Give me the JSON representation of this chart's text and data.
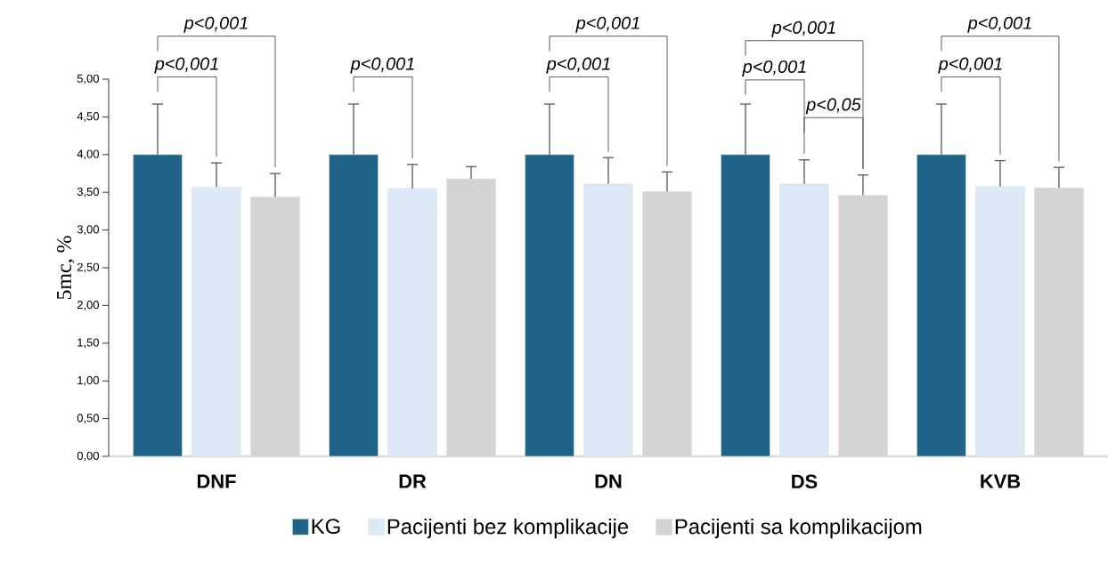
{
  "chart_data": {
    "type": "bar",
    "ylabel": "5mc, %",
    "categories": [
      "DNF",
      "DR",
      "DN",
      "DS",
      "KVB"
    ],
    "ylim": [
      0,
      5
    ],
    "yticks": [
      {
        "value": 0,
        "label": "0,00"
      },
      {
        "value": 0.5,
        "label": "0,50"
      },
      {
        "value": 1,
        "label": "1,00"
      },
      {
        "value": 1.5,
        "label": "1,50"
      },
      {
        "value": 2,
        "label": "2,00"
      },
      {
        "value": 2.5,
        "label": "2,50"
      },
      {
        "value": 3,
        "label": "3,00"
      },
      {
        "value": 3.5,
        "label": "3,50"
      },
      {
        "value": 4,
        "label": "4,00"
      },
      {
        "value": 4.5,
        "label": "4,50"
      },
      {
        "value": 5,
        "label": "5,00"
      }
    ],
    "series": [
      {
        "name": "KG",
        "color": "#1f6388",
        "values": [
          4.0,
          4.0,
          4.0,
          4.0,
          4.0
        ],
        "errors": [
          0.67,
          0.67,
          0.67,
          0.67,
          0.67
        ]
      },
      {
        "name": "Pacijenti bez komplikacije",
        "color": "#dce9f6",
        "values": [
          3.57,
          3.55,
          3.61,
          3.61,
          3.58
        ],
        "errors": [
          0.32,
          0.32,
          0.35,
          0.32,
          0.34
        ]
      },
      {
        "name": "Pacijenti sa komplikacijom",
        "color": "#d4d4d4",
        "values": [
          3.44,
          3.68,
          3.51,
          3.46,
          3.56
        ],
        "errors": [
          0.31,
          0.16,
          0.26,
          0.27,
          0.27
        ]
      }
    ],
    "annotations": [
      "p<0,001",
      "p<0,001",
      "p<0,001",
      "p<0,001",
      "p<0,001",
      "p<0,001",
      "p<0,001",
      "p<0,05",
      "p<0,001",
      "p<0,001"
    ],
    "legend": "bottom",
    "grid": false
  }
}
